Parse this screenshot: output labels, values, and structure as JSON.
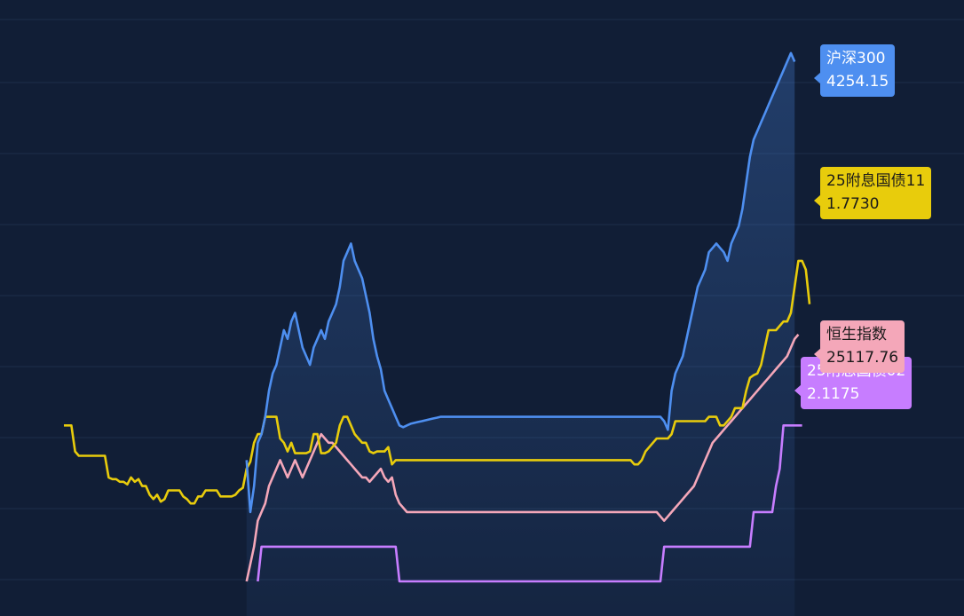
{
  "chart_data": {
    "type": "line",
    "grid": true,
    "series": [
      {
        "name": "25附息国债11",
        "color": "#e8cc0c",
        "last_value": "1.7730",
        "y": [
          1.2,
          1.2,
          1.2,
          0.9,
          0.85,
          0.85,
          0.85,
          0.85,
          0.85,
          0.85,
          0.85,
          0.85,
          0.6,
          0.58,
          0.58,
          0.55,
          0.55,
          0.52,
          0.6,
          0.55,
          0.58,
          0.5,
          0.5,
          0.4,
          0.35,
          0.4,
          0.32,
          0.35,
          0.45,
          0.45,
          0.45,
          0.45,
          0.38,
          0.35,
          0.3,
          0.3,
          0.38,
          0.38,
          0.45,
          0.45,
          0.45,
          0.45,
          0.38,
          0.38,
          0.38,
          0.38,
          0.4,
          0.45,
          0.48,
          0.7,
          0.78,
          1.0,
          1.1,
          1.1,
          1.3,
          1.3,
          1.3,
          1.3,
          1.05,
          1.0,
          0.9,
          1.0,
          0.88,
          0.88,
          0.88,
          0.88,
          0.9,
          1.1,
          1.1,
          0.88,
          0.88,
          0.9,
          0.95,
          1.0,
          1.2,
          1.3,
          1.3,
          1.2,
          1.1,
          1.05,
          1.0,
          1.0,
          0.9,
          0.88,
          0.9,
          0.9,
          0.9,
          0.95,
          0.75,
          0.8,
          0.8,
          0.8,
          0.8,
          0.8,
          0.8,
          0.8,
          0.8,
          0.8,
          0.8,
          0.8,
          0.8,
          0.8,
          0.8,
          0.8,
          0.8,
          0.8,
          0.8,
          0.8,
          0.8,
          0.8,
          0.8,
          0.8,
          0.8,
          0.8,
          0.8,
          0.8,
          0.8,
          0.8,
          0.8,
          0.8,
          0.8,
          0.8,
          0.8,
          0.8,
          0.8,
          0.8,
          0.8,
          0.8,
          0.8,
          0.8,
          0.8,
          0.8,
          0.8,
          0.8,
          0.8,
          0.8,
          0.8,
          0.8,
          0.8,
          0.8,
          0.8,
          0.8,
          0.8,
          0.8,
          0.8,
          0.8,
          0.8,
          0.8,
          0.8,
          0.8,
          0.8,
          0.8,
          0.8,
          0.75,
          0.75,
          0.8,
          0.9,
          0.95,
          1.0,
          1.05,
          1.05,
          1.05,
          1.05,
          1.1,
          1.25,
          1.25,
          1.25,
          1.25,
          1.25,
          1.25,
          1.25,
          1.25,
          1.25,
          1.3,
          1.3,
          1.3,
          1.2,
          1.2,
          1.25,
          1.3,
          1.4,
          1.4,
          1.4,
          1.6,
          1.75,
          1.78,
          1.8,
          1.9,
          2.1,
          2.3,
          2.3,
          2.3,
          2.35,
          2.4,
          2.4,
          2.5,
          2.8,
          3.1,
          3.1,
          3.0,
          2.6
        ]
      },
      {
        "name": "沪深300",
        "color": "#4e8ff0",
        "last_value": "4254.15",
        "y": [
          null,
          null,
          null,
          null,
          null,
          null,
          null,
          null,
          null,
          null,
          null,
          null,
          null,
          null,
          null,
          null,
          null,
          null,
          null,
          null,
          null,
          null,
          null,
          null,
          null,
          null,
          null,
          null,
          null,
          null,
          null,
          null,
          null,
          null,
          null,
          null,
          null,
          null,
          null,
          null,
          null,
          null,
          null,
          null,
          null,
          null,
          null,
          null,
          null,
          0.8,
          0.2,
          0.5,
          1.0,
          1.1,
          1.3,
          1.6,
          1.8,
          1.9,
          2.1,
          2.3,
          2.2,
          2.4,
          2.5,
          2.3,
          2.1,
          2.0,
          1.9,
          2.1,
          2.2,
          2.3,
          2.2,
          2.4,
          2.5,
          2.6,
          2.8,
          3.1,
          3.2,
          3.3,
          3.1,
          3.0,
          2.9,
          2.7,
          2.5,
          2.2,
          2.0,
          1.85,
          1.6,
          1.5,
          1.4,
          1.3,
          1.2,
          1.18,
          1.2,
          1.22,
          1.23,
          1.24,
          1.25,
          1.26,
          1.27,
          1.28,
          1.29,
          1.3,
          1.3,
          1.3,
          1.3,
          1.3,
          1.3,
          1.3,
          1.3,
          1.3,
          1.3,
          1.3,
          1.3,
          1.3,
          1.3,
          1.3,
          1.3,
          1.3,
          1.3,
          1.3,
          1.3,
          1.3,
          1.3,
          1.3,
          1.3,
          1.3,
          1.3,
          1.3,
          1.3,
          1.3,
          1.3,
          1.3,
          1.3,
          1.3,
          1.3,
          1.3,
          1.3,
          1.3,
          1.3,
          1.3,
          1.3,
          1.3,
          1.3,
          1.3,
          1.3,
          1.3,
          1.3,
          1.3,
          1.3,
          1.3,
          1.3,
          1.3,
          1.3,
          1.3,
          1.3,
          1.3,
          1.3,
          1.3,
          1.3,
          1.3,
          1.3,
          1.25,
          1.15,
          1.6,
          1.8,
          1.9,
          2.0,
          2.2,
          2.4,
          2.6,
          2.8,
          2.9,
          3.0,
          3.2,
          3.25,
          3.3,
          3.25,
          3.2,
          3.1,
          3.3,
          3.4,
          3.5,
          3.7,
          4.0,
          4.3,
          4.5,
          4.6,
          4.7,
          4.8,
          4.9,
          5.0,
          5.1,
          5.2,
          5.3,
          5.4,
          5.5,
          5.4
        ]
      },
      {
        "name": "恒生指数",
        "color": "#f4a7b9",
        "last_value": "25117.76",
        "y": [
          null,
          null,
          null,
          null,
          null,
          null,
          null,
          null,
          null,
          null,
          null,
          null,
          null,
          null,
          null,
          null,
          null,
          null,
          null,
          null,
          null,
          null,
          null,
          null,
          null,
          null,
          null,
          null,
          null,
          null,
          null,
          null,
          null,
          null,
          null,
          null,
          null,
          null,
          null,
          null,
          null,
          null,
          null,
          null,
          null,
          null,
          null,
          null,
          null,
          -0.6,
          -0.4,
          -0.2,
          0.1,
          0.2,
          0.3,
          0.5,
          0.6,
          0.7,
          0.8,
          0.7,
          0.6,
          0.7,
          0.8,
          0.7,
          0.6,
          0.7,
          0.8,
          0.9,
          1.0,
          1.1,
          1.05,
          1.0,
          1.0,
          0.95,
          0.9,
          0.85,
          0.8,
          0.75,
          0.7,
          0.65,
          0.6,
          0.6,
          0.55,
          0.6,
          0.65,
          0.7,
          0.6,
          0.55,
          0.6,
          0.4,
          0.3,
          0.25,
          0.2,
          0.2,
          0.2,
          0.2,
          0.2,
          0.2,
          0.2,
          0.2,
          0.2,
          0.2,
          0.2,
          0.2,
          0.2,
          0.2,
          0.2,
          0.2,
          0.2,
          0.2,
          0.2,
          0.2,
          0.2,
          0.2,
          0.2,
          0.2,
          0.2,
          0.2,
          0.2,
          0.2,
          0.2,
          0.2,
          0.2,
          0.2,
          0.2,
          0.2,
          0.2,
          0.2,
          0.2,
          0.2,
          0.2,
          0.2,
          0.2,
          0.2,
          0.2,
          0.2,
          0.2,
          0.2,
          0.2,
          0.2,
          0.2,
          0.2,
          0.2,
          0.2,
          0.2,
          0.2,
          0.2,
          0.2,
          0.2,
          0.2,
          0.2,
          0.2,
          0.2,
          0.2,
          0.2,
          0.2,
          0.2,
          0.2,
          0.2,
          0.2,
          0.15,
          0.1,
          0.15,
          0.2,
          0.25,
          0.3,
          0.35,
          0.4,
          0.45,
          0.5,
          0.6,
          0.7,
          0.8,
          0.9,
          1.0,
          1.05,
          1.1,
          1.15,
          1.2,
          1.25,
          1.3,
          1.35,
          1.4,
          1.45,
          1.5,
          1.55,
          1.6,
          1.65,
          1.7,
          1.75,
          1.8,
          1.85,
          1.9,
          1.95,
          2.0,
          2.1,
          2.2,
          2.25
        ]
      },
      {
        "name": "25附息国债02",
        "color": "#c77dff",
        "last_value": "2.1175",
        "y": [
          null,
          null,
          null,
          null,
          null,
          null,
          null,
          null,
          null,
          null,
          null,
          null,
          null,
          null,
          null,
          null,
          null,
          null,
          null,
          null,
          null,
          null,
          null,
          null,
          null,
          null,
          null,
          null,
          null,
          null,
          null,
          null,
          null,
          null,
          null,
          null,
          null,
          null,
          null,
          null,
          null,
          null,
          null,
          null,
          null,
          null,
          null,
          null,
          null,
          null,
          null,
          null,
          -0.6,
          -0.2,
          -0.2,
          -0.2,
          -0.2,
          -0.2,
          -0.2,
          -0.2,
          -0.2,
          -0.2,
          -0.2,
          -0.2,
          -0.2,
          -0.2,
          -0.2,
          -0.2,
          -0.2,
          -0.2,
          -0.2,
          -0.2,
          -0.2,
          -0.2,
          -0.2,
          -0.2,
          -0.2,
          -0.2,
          -0.2,
          -0.2,
          -0.2,
          -0.2,
          -0.2,
          -0.2,
          -0.2,
          -0.2,
          -0.2,
          -0.2,
          -0.2,
          -0.2,
          -0.6,
          -0.6,
          -0.6,
          -0.6,
          -0.6,
          -0.6,
          -0.6,
          -0.6,
          -0.6,
          -0.6,
          -0.6,
          -0.6,
          -0.6,
          -0.6,
          -0.6,
          -0.6,
          -0.6,
          -0.6,
          -0.6,
          -0.6,
          -0.6,
          -0.6,
          -0.6,
          -0.6,
          -0.6,
          -0.6,
          -0.6,
          -0.6,
          -0.6,
          -0.6,
          -0.6,
          -0.6,
          -0.6,
          -0.6,
          -0.6,
          -0.6,
          -0.6,
          -0.6,
          -0.6,
          -0.6,
          -0.6,
          -0.6,
          -0.6,
          -0.6,
          -0.6,
          -0.6,
          -0.6,
          -0.6,
          -0.6,
          -0.6,
          -0.6,
          -0.6,
          -0.6,
          -0.6,
          -0.6,
          -0.6,
          -0.6,
          -0.6,
          -0.6,
          -0.6,
          -0.6,
          -0.6,
          -0.6,
          -0.6,
          -0.6,
          -0.6,
          -0.6,
          -0.6,
          -0.6,
          -0.6,
          -0.6,
          -0.2,
          -0.2,
          -0.2,
          -0.2,
          -0.2,
          -0.2,
          -0.2,
          -0.2,
          -0.2,
          -0.2,
          -0.2,
          -0.2,
          -0.2,
          -0.2,
          -0.2,
          -0.2,
          -0.2,
          -0.2,
          -0.2,
          -0.2,
          -0.2,
          -0.2,
          -0.2,
          -0.2,
          0.2,
          0.2,
          0.2,
          0.2,
          0.2,
          0.2,
          0.5,
          0.7,
          1.2,
          1.2,
          1.2,
          1.2,
          1.2,
          1.2
        ]
      }
    ]
  },
  "labels": {
    "hs300": {
      "line1": "沪深300",
      "line2": "4254.15"
    },
    "bond11": {
      "line1": "25附息国债11",
      "line2": "1.7730"
    },
    "hsi": {
      "line1": "恒生指数",
      "line2": "25117.76"
    },
    "bond02": {
      "line1": "25附息国债02",
      "line2": "2.1175"
    }
  }
}
